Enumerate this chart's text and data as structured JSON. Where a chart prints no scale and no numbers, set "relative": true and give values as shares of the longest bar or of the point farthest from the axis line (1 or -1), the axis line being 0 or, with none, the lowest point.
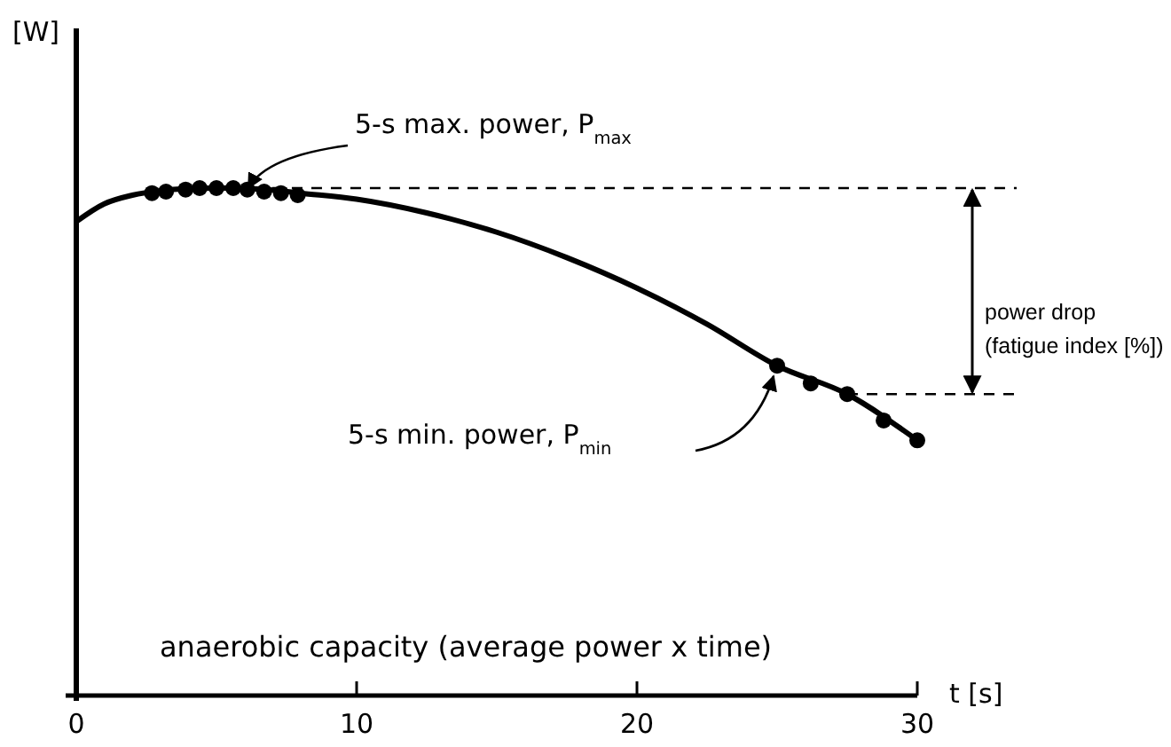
{
  "chart_data": {
    "type": "line",
    "relative": true,
    "xlabel": "t [s]",
    "xlim": [
      0,
      30
    ],
    "xticks": [
      0,
      10,
      20,
      30
    ],
    "grid": false,
    "series": [
      {
        "type": "line",
        "color": "#000000",
        "marker": "none",
        "x": [
          0,
          1,
          2,
          3,
          4,
          5,
          6,
          7,
          8,
          10,
          12.5,
          15,
          17.5,
          20,
          22.5,
          25,
          27.5,
          30
        ],
        "values": [
          0.934,
          0.969,
          0.986,
          0.995,
          0.999,
          1.0,
          0.999,
          0.996,
          0.99,
          0.978,
          0.951,
          0.913,
          0.863,
          0.803,
          0.732,
          0.65,
          0.594,
          0.503
        ]
      },
      {
        "type": "scatter",
        "color": "#000000",
        "marker": "circle",
        "x": [
          2.7,
          3.2,
          3.9,
          4.4,
          5.0,
          5.6,
          6.1,
          6.7,
          7.3,
          7.9,
          25,
          26.2,
          27.5,
          28.8,
          30
        ],
        "values": [
          0.99,
          0.993,
          0.997,
          1.0,
          1.0,
          1.0,
          0.997,
          0.993,
          0.99,
          0.986,
          0.65,
          0.615,
          0.594,
          0.542,
          0.503
        ]
      }
    ],
    "ref_lines": [
      {
        "axis": "y",
        "value": 1.0,
        "line_style": "dashed",
        "color": "#000000"
      },
      {
        "axis": "y",
        "value": 0.594,
        "line_style": "dashed",
        "color": "#000000"
      }
    ],
    "annotations": [
      "5-s max. power, P$_{max}$",
      "5-s min. power, P$_{min}$",
      "power drop\n(fatigue index [%])",
      "anaerobic capacity (average power x time)",
      "[W]"
    ]
  }
}
